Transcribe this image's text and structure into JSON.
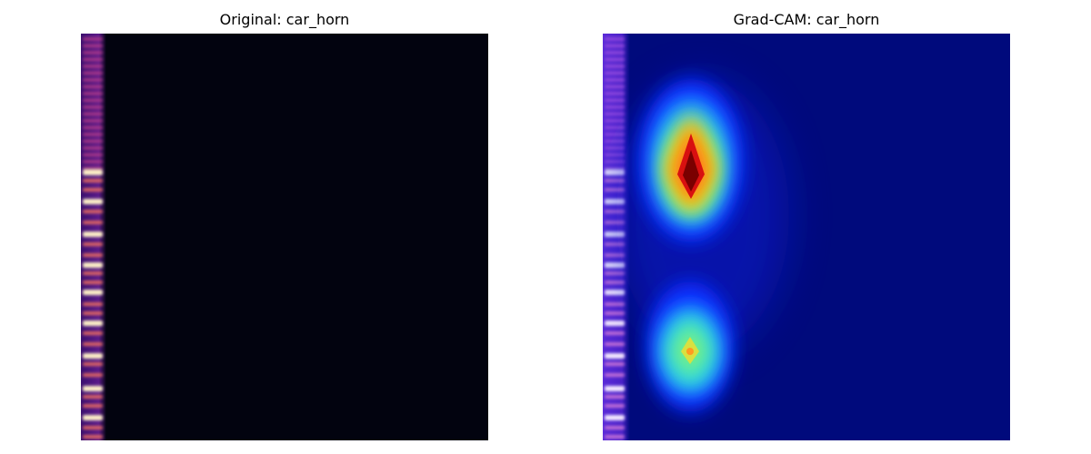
{
  "panels": [
    {
      "title": "Original: car_horn",
      "kind": "spectrogram"
    },
    {
      "title": "Grad-CAM: car_horn",
      "kind": "gradcam-overlay"
    }
  ],
  "colors": {
    "spectrogram_background": "#02030f",
    "cam_background": "#000a7c",
    "cam_hotspot_core": "#7a0000"
  }
}
